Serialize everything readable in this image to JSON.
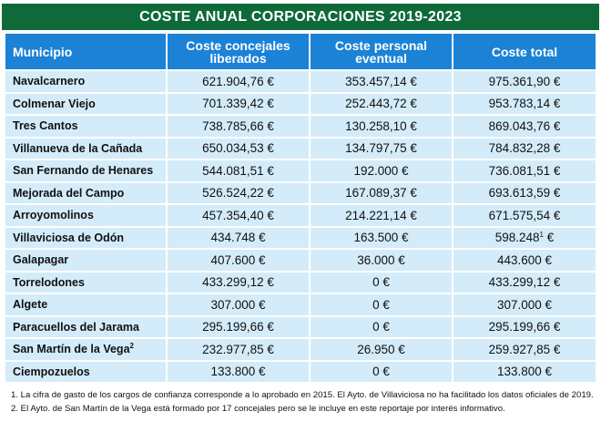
{
  "title": "COSTE ANUAL CORPORACIONES 2019-2023",
  "columns": {
    "municipio": "Municipio",
    "concejales": "Coste concejales liberados",
    "personal": "Coste personal eventual",
    "total": "Coste total"
  },
  "rows": [
    {
      "name": "Navalcarnero",
      "concejales": "621.904,76 €",
      "personal": "353.457,14 €",
      "total": "975.361,90 €"
    },
    {
      "name": "Colmenar Viejo",
      "concejales": "701.339,42 €",
      "personal": "252.443,72 €",
      "total": "953.783,14 €"
    },
    {
      "name": "Tres Cantos",
      "concejales": "738.785,66 €",
      "personal": "130.258,10 €",
      "total": "869.043,76 €"
    },
    {
      "name": "Villanueva de la Cañada",
      "concejales": "650.034,53 €",
      "personal": "134.797,75 €",
      "total": "784.832,28 €"
    },
    {
      "name": "San Fernando de Henares",
      "concejales": "544.081,51 €",
      "personal": "192.000 €",
      "total": "736.081,51 €"
    },
    {
      "name": "Mejorada del Campo",
      "concejales": "526.524,22 €",
      "personal": "167.089,37 €",
      "total": "693.613,59 €"
    },
    {
      "name": "Arroyomolinos",
      "concejales": "457.354,40 €",
      "personal": "214.221,14 €",
      "total": "671.575,54 €"
    },
    {
      "name": "Villaviciosa de Odón",
      "concejales": "434.748 €",
      "personal": "163.500 €",
      "total": "598.248",
      "total_note": "1",
      "total_suffix": " €"
    },
    {
      "name": "Galapagar",
      "concejales": "407.600 €",
      "personal": "36.000 €",
      "total": "443.600 €"
    },
    {
      "name": "Torrelodones",
      "concejales": "433.299,12 €",
      "personal": "0 €",
      "total": "433.299,12 €"
    },
    {
      "name": "Algete",
      "concejales": "307.000 €",
      "personal": "0 €",
      "total": "307.000 €"
    },
    {
      "name": "Paracuellos del Jarama",
      "concejales": "295.199,66 €",
      "personal": "0 €",
      "total": "295.199,66 €"
    },
    {
      "name": "San Martín de la Vega",
      "name_note": "2",
      "concejales": "232.977,85 €",
      "personal": "26.950 €",
      "total": "259.927,85 €"
    },
    {
      "name": "Ciempozuelos",
      "concejales": "133.800 €",
      "personal": "0 €",
      "total": "133.800 €"
    }
  ],
  "footnotes": [
    "1. La cifra de gasto de los cargos de confianza corresponde a lo aprobado en 2015. El Ayto. de Villaviciosa no ha facilitado los datos oficiales de 2019.",
    "2. El Ayto. de San Martín de la Vega está formado por 17 concejales pero se le incluye en este reportaje por interés informativo."
  ]
}
